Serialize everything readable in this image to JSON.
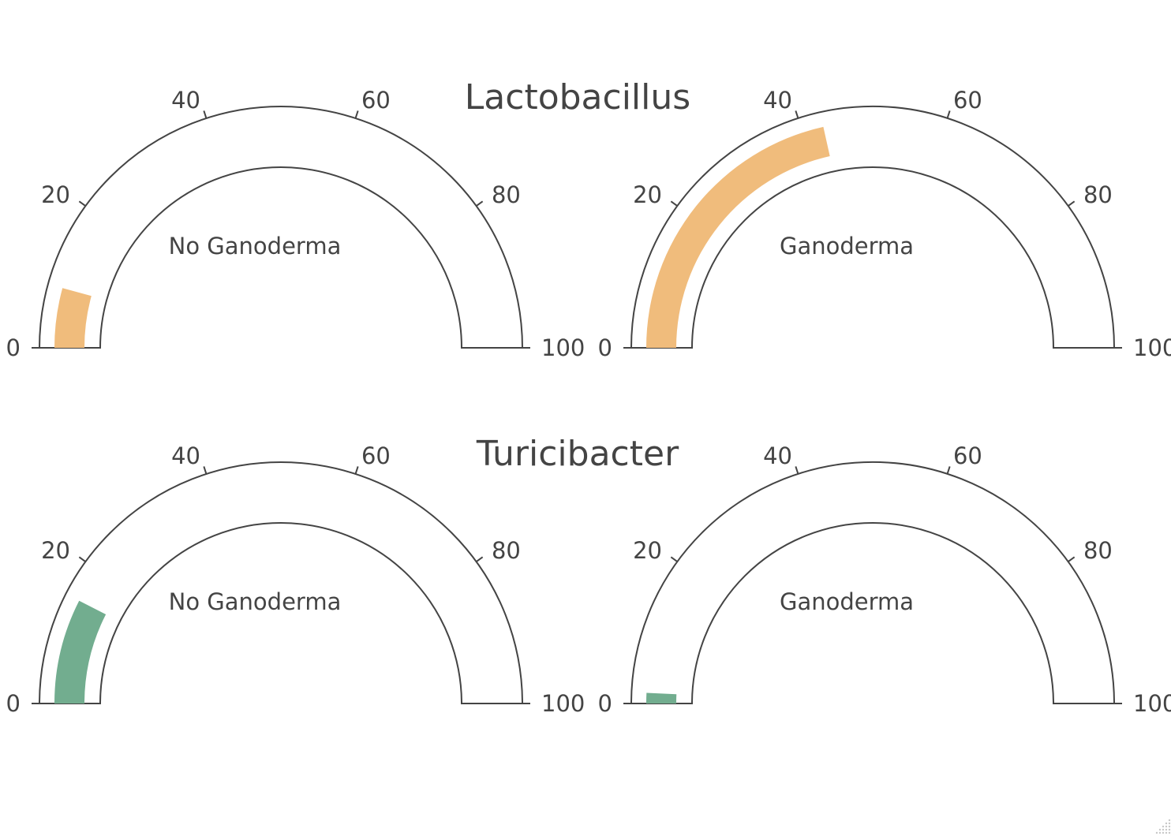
{
  "chart_data": [
    {
      "type": "gauge",
      "title": "Lactobacillus",
      "axis_range": [
        0,
        100
      ],
      "tick_labels": [
        "0",
        "20",
        "40",
        "60",
        "80",
        "100"
      ],
      "bar_color": "#f0bc7c",
      "gauges": [
        {
          "label": "No Ganoderma",
          "value": 8.5
        },
        {
          "label": "Ganoderma",
          "value": 43
        }
      ]
    },
    {
      "type": "gauge",
      "title": "Turicibacter",
      "axis_range": [
        0,
        100
      ],
      "tick_labels": [
        "0",
        "20",
        "40",
        "60",
        "80",
        "100"
      ],
      "bar_color": "#72ad8f",
      "gauges": [
        {
          "label": "No Ganoderma",
          "value": 15
        },
        {
          "label": "Ganoderma",
          "value": 1.5
        }
      ]
    }
  ]
}
